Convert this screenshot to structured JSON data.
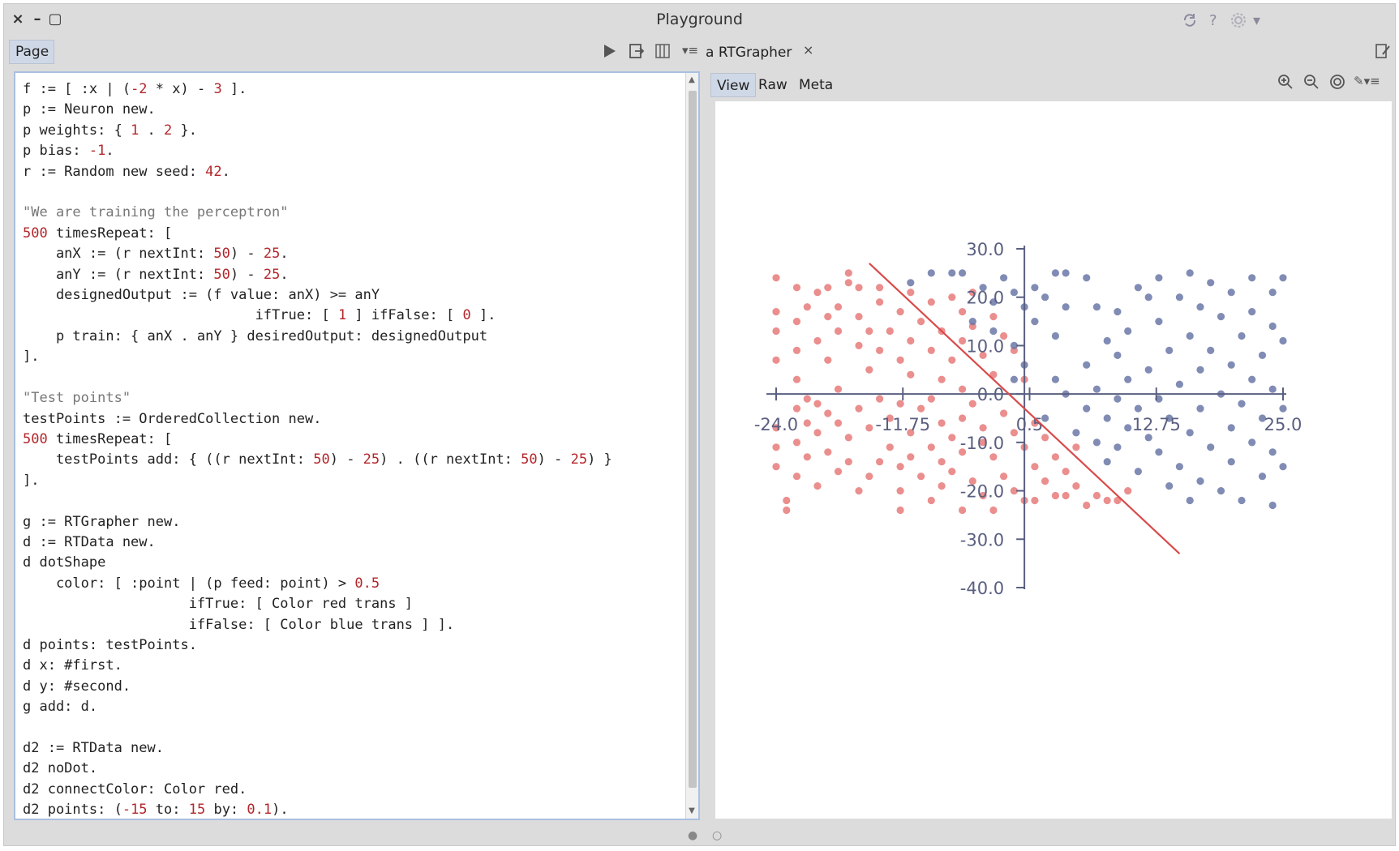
{
  "window": {
    "title": "Playground",
    "close_glyph": "×",
    "minimize_glyph": "–",
    "maximize_glyph": "▢"
  },
  "toolbar_right": {
    "sync_icon": "sync-icon",
    "help_glyph": "?",
    "settings_icon": "gear-icon",
    "menu_glyph": "▾"
  },
  "left_pane": {
    "tab_label": "Page",
    "run_icon": "play-icon",
    "tools": [
      "▶",
      "⇥",
      "▥",
      "▾≡"
    ]
  },
  "code": {
    "lines": [
      "f := [ :x | (-2 * x) - 3 ].",
      "p := Neuron new.",
      "p weights: { 1 . 2 }.",
      "p bias: -1.",
      "r := Random new seed: 42.",
      "",
      "\"We are training the perceptron\"",
      "500 timesRepeat: [",
      "    anX := (r nextInt: 50) - 25.",
      "    anY := (r nextInt: 50) - 25.",
      "    designedOutput := (f value: anX) >= anY",
      "                            ifTrue: [ 1 ] ifFalse: [ 0 ].",
      "    p train: { anX . anY } desiredOutput: designedOutput",
      "].",
      "",
      "\"Test points\"",
      "testPoints := OrderedCollection new.",
      "500 timesRepeat: [",
      "    testPoints add: { ((r nextInt: 50) - 25) . ((r nextInt: 50) - 25) }",
      "].",
      "",
      "g := RTGrapher new.",
      "d := RTData new.",
      "d dotShape",
      "    color: [ :point | (p feed: point) > 0.5",
      "                    ifTrue: [ Color red trans ]",
      "                    ifFalse: [ Color blue trans ] ].",
      "d points: testPoints.",
      "d x: #first.",
      "d y: #second.",
      "g add: d.",
      "",
      "d2 := RTData new.",
      "d2 noDot.",
      "d2 connectColor: Color red.",
      "d2 points: (-15 to: 15 by: 0.1)."
    ]
  },
  "right_pane": {
    "tab_label": "a RTGrapher",
    "close_glyph": "×",
    "subtabs": [
      "View",
      "Raw",
      "Meta"
    ],
    "active_subtab": "View",
    "view_tools": [
      "⊕",
      "⊖",
      "◎",
      "✎▾≡"
    ]
  },
  "chart_data": {
    "type": "scatter",
    "x_ticks": [
      "-24.0",
      "-11.75",
      "0.5",
      "12.75",
      "25.0"
    ],
    "y_ticks": [
      "30.0",
      "20.0",
      "10.0",
      "0.0",
      "-10.0",
      "-20.0",
      "-30.0",
      "-40.0"
    ],
    "xlim": [
      -24.0,
      25.0
    ],
    "ylim": [
      -40.0,
      30.0
    ],
    "colors": {
      "positive": "#e87a7a",
      "negative": "#6b78a8",
      "line": "#d94a4a",
      "axis": "#5a5f80"
    },
    "line": {
      "formula": "y = -2x - 3",
      "x_from": -15,
      "x_to": 15
    },
    "series": [
      {
        "class": "red",
        "points": [
          [
            -24,
            24
          ],
          [
            -24,
            17
          ],
          [
            -24,
            13
          ],
          [
            -24,
            7
          ],
          [
            -24,
            -7
          ],
          [
            -24,
            -11
          ],
          [
            -24,
            -15
          ],
          [
            -23,
            -22
          ],
          [
            -23,
            -24
          ],
          [
            -22,
            22
          ],
          [
            -22,
            15
          ],
          [
            -22,
            9
          ],
          [
            -22,
            3
          ],
          [
            -22,
            -3
          ],
          [
            -22,
            -10
          ],
          [
            -22,
            -17
          ],
          [
            -21,
            18
          ],
          [
            -21,
            -1
          ],
          [
            -21,
            -6
          ],
          [
            -21,
            -13
          ],
          [
            -20,
            21
          ],
          [
            -20,
            11
          ],
          [
            -20,
            -2
          ],
          [
            -20,
            -8
          ],
          [
            -20,
            -19
          ],
          [
            -19,
            22
          ],
          [
            -19,
            16
          ],
          [
            -19,
            7
          ],
          [
            -19,
            -4
          ],
          [
            -19,
            -12
          ],
          [
            -18,
            18
          ],
          [
            -18,
            13
          ],
          [
            -18,
            1
          ],
          [
            -18,
            -6
          ],
          [
            -18,
            -16
          ],
          [
            -17,
            25
          ],
          [
            -17,
            23
          ],
          [
            -17,
            -9
          ],
          [
            -17,
            -14
          ],
          [
            -16,
            22
          ],
          [
            -16,
            16
          ],
          [
            -16,
            10
          ],
          [
            -16,
            -3
          ],
          [
            -16,
            -20
          ],
          [
            -15,
            13
          ],
          [
            -15,
            5
          ],
          [
            -15,
            -7
          ],
          [
            -15,
            -17
          ],
          [
            -14,
            22
          ],
          [
            -14,
            19
          ],
          [
            -14,
            9
          ],
          [
            -14,
            -1
          ],
          [
            -14,
            -14
          ],
          [
            -13,
            13
          ],
          [
            -13,
            -5
          ],
          [
            -13,
            -11
          ],
          [
            -12,
            17
          ],
          [
            -12,
            7
          ],
          [
            -12,
            -2
          ],
          [
            -12,
            -15
          ],
          [
            -12,
            -20
          ],
          [
            -12,
            -24
          ],
          [
            -11,
            21
          ],
          [
            -11,
            11
          ],
          [
            -11,
            4
          ],
          [
            -11,
            -8
          ],
          [
            -11,
            -13
          ],
          [
            -10,
            15
          ],
          [
            -10,
            -3
          ],
          [
            -10,
            -17
          ],
          [
            -9,
            19
          ],
          [
            -9,
            9
          ],
          [
            -9,
            -1
          ],
          [
            -9,
            -11
          ],
          [
            -9,
            -22
          ],
          [
            -8,
            13
          ],
          [
            -8,
            3
          ],
          [
            -8,
            -6
          ],
          [
            -8,
            -14
          ],
          [
            -8,
            -19
          ],
          [
            -7,
            20
          ],
          [
            -7,
            7
          ],
          [
            -7,
            -9
          ],
          [
            -7,
            -16
          ],
          [
            -6,
            17
          ],
          [
            -6,
            11
          ],
          [
            -6,
            1
          ],
          [
            -6,
            -5
          ],
          [
            -6,
            -12
          ],
          [
            -6,
            -24
          ],
          [
            -5,
            21
          ],
          [
            -5,
            14
          ],
          [
            -5,
            -2
          ],
          [
            -5,
            -18
          ],
          [
            -4,
            8
          ],
          [
            -4,
            -7
          ],
          [
            -4,
            -10
          ],
          [
            -4,
            -21
          ],
          [
            -3,
            16
          ],
          [
            -3,
            4
          ],
          [
            -3,
            -13
          ],
          [
            -3,
            -24
          ],
          [
            -2,
            12
          ],
          [
            -2,
            -4
          ],
          [
            -2,
            -17
          ],
          [
            -1,
            9
          ],
          [
            -1,
            -8
          ],
          [
            -1,
            -20
          ],
          [
            0,
            3
          ],
          [
            0,
            -11
          ],
          [
            0,
            -22
          ],
          [
            1,
            -6
          ],
          [
            1,
            -15
          ],
          [
            1,
            -22
          ],
          [
            2,
            -9
          ],
          [
            2,
            -18
          ],
          [
            3,
            -13
          ],
          [
            3,
            -21
          ],
          [
            4,
            -16
          ],
          [
            4,
            -21
          ],
          [
            5,
            -11
          ],
          [
            5,
            -19
          ],
          [
            6,
            -23
          ],
          [
            7,
            -21
          ],
          [
            8,
            -22
          ],
          [
            9,
            -22
          ],
          [
            10,
            -20
          ]
        ]
      },
      {
        "class": "blue",
        "points": [
          [
            -11,
            23
          ],
          [
            -9,
            25
          ],
          [
            -7,
            25
          ],
          [
            -6,
            25
          ],
          [
            -5,
            15
          ],
          [
            -4,
            22
          ],
          [
            -3,
            19
          ],
          [
            -3,
            13
          ],
          [
            -2,
            24
          ],
          [
            -1,
            21
          ],
          [
            -1,
            10
          ],
          [
            -1,
            3
          ],
          [
            0,
            18
          ],
          [
            0,
            6
          ],
          [
            1,
            22
          ],
          [
            1,
            15
          ],
          [
            2,
            20
          ],
          [
            2,
            -5
          ],
          [
            3,
            25
          ],
          [
            3,
            12
          ],
          [
            3,
            3
          ],
          [
            4,
            25
          ],
          [
            4,
            18
          ],
          [
            4,
            0
          ],
          [
            5,
            -8
          ],
          [
            6,
            24
          ],
          [
            6,
            6
          ],
          [
            6,
            -3
          ],
          [
            7,
            18
          ],
          [
            7,
            1
          ],
          [
            7,
            -10
          ],
          [
            8,
            11
          ],
          [
            8,
            -5
          ],
          [
            8,
            -14
          ],
          [
            9,
            17
          ],
          [
            9,
            8
          ],
          [
            9,
            -1
          ],
          [
            9,
            -11
          ],
          [
            10,
            13
          ],
          [
            10,
            3
          ],
          [
            10,
            -7
          ],
          [
            11,
            22
          ],
          [
            11,
            -3
          ],
          [
            11,
            -16
          ],
          [
            12,
            20
          ],
          [
            12,
            5
          ],
          [
            12,
            -9
          ],
          [
            13,
            24
          ],
          [
            13,
            15
          ],
          [
            13,
            -1
          ],
          [
            13,
            -12
          ],
          [
            14,
            9
          ],
          [
            14,
            -5
          ],
          [
            14,
            -19
          ],
          [
            15,
            20
          ],
          [
            15,
            2
          ],
          [
            15,
            -15
          ],
          [
            16,
            25
          ],
          [
            16,
            12
          ],
          [
            16,
            -8
          ],
          [
            16,
            -22
          ],
          [
            17,
            18
          ],
          [
            17,
            5
          ],
          [
            17,
            -3
          ],
          [
            17,
            -18
          ],
          [
            18,
            23
          ],
          [
            18,
            9
          ],
          [
            18,
            -11
          ],
          [
            19,
            16
          ],
          [
            19,
            0
          ],
          [
            19,
            -20
          ],
          [
            20,
            21
          ],
          [
            20,
            6
          ],
          [
            20,
            -7
          ],
          [
            20,
            -14
          ],
          [
            21,
            12
          ],
          [
            21,
            -2
          ],
          [
            21,
            -22
          ],
          [
            22,
            24
          ],
          [
            22,
            17
          ],
          [
            22,
            3
          ],
          [
            22,
            -10
          ],
          [
            23,
            8
          ],
          [
            23,
            -5
          ],
          [
            23,
            -17
          ],
          [
            24,
            21
          ],
          [
            24,
            14
          ],
          [
            24,
            1
          ],
          [
            24,
            -12
          ],
          [
            24,
            -23
          ],
          [
            25,
            24
          ],
          [
            25,
            11
          ],
          [
            25,
            -3
          ],
          [
            25,
            -15
          ]
        ]
      }
    ]
  },
  "bottom": {
    "page_dots": [
      "●",
      "○"
    ]
  }
}
